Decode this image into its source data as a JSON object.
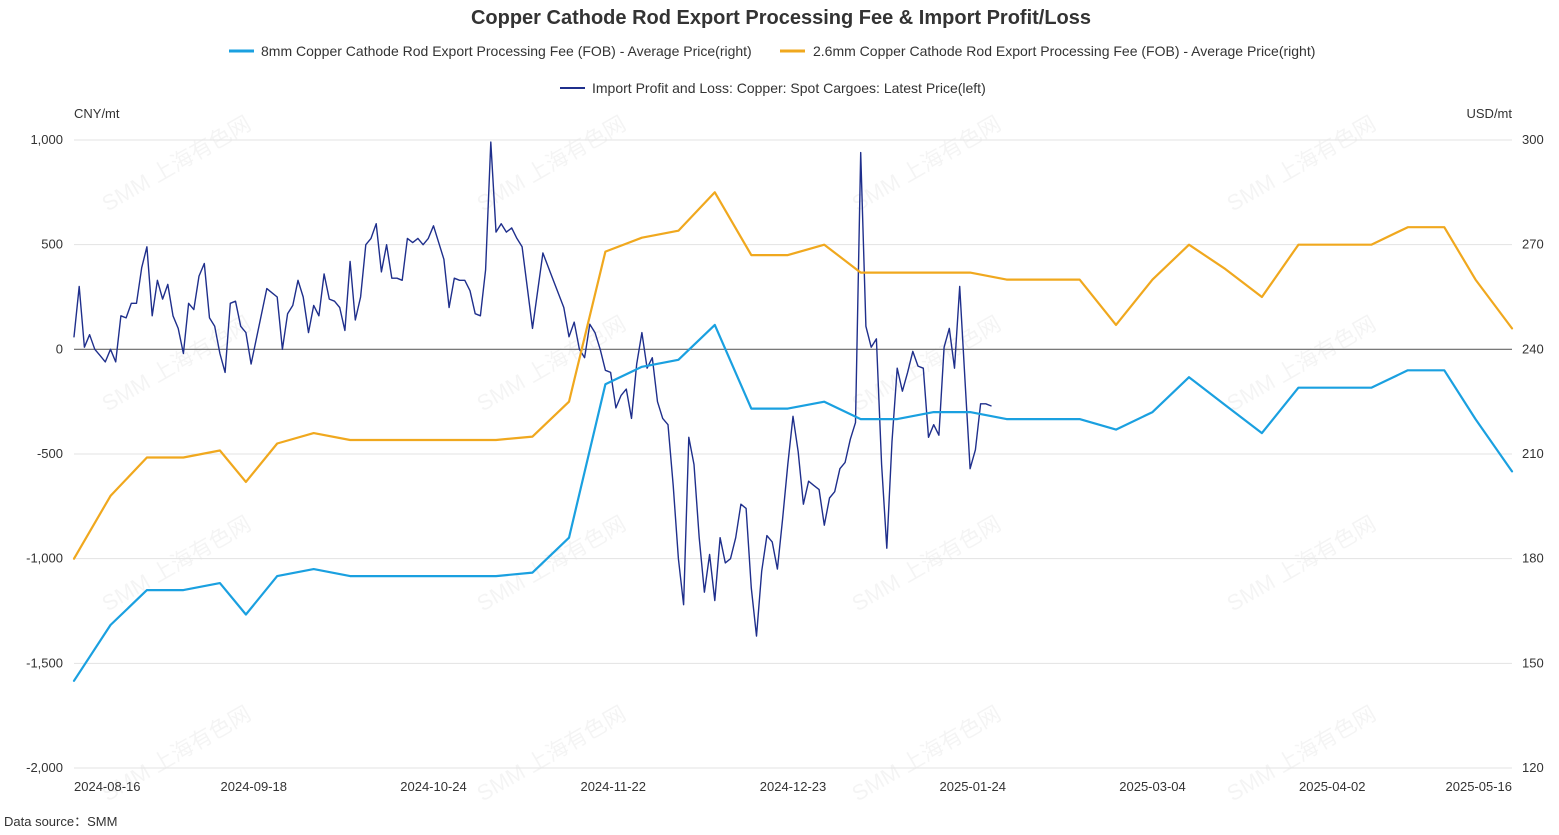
{
  "chart_data": {
    "type": "line",
    "title": "Copper Cathode Rod Export Processing Fee & Import Profit/Loss",
    "left_axis": {
      "unit": "CNY/mt",
      "min": -2000,
      "max": 1000,
      "ticks": [
        "-2,000",
        "-1,500",
        "-1,000",
        "-500",
        "0",
        "500",
        "1,000"
      ],
      "tick_values": [
        -2000,
        -1500,
        -1000,
        -500,
        0,
        500,
        1000
      ]
    },
    "right_axis": {
      "unit": "USD/mt",
      "min": 120,
      "max": 300,
      "ticks": [
        "120",
        "150",
        "180",
        "210",
        "240",
        "270",
        "300"
      ],
      "tick_values": [
        120,
        150,
        180,
        210,
        240,
        270,
        300
      ]
    },
    "x_start": "2024-08-16",
    "x_end": "2025-05-19",
    "x_ticks": [
      "2024-08-16",
      "2024-09-18",
      "2024-10-24",
      "2024-11-22",
      "2024-12-23",
      "2025-01-24",
      "2025-03-04",
      "2025-04-02",
      "2025-05-16"
    ],
    "grid": true,
    "legend_position": "top",
    "watermark": "SMM 上海有色网",
    "source": "Data source：SMM",
    "series": [
      {
        "name": "8mm Copper Cathode Rod Export Processing Fee (FOB) - Average Price(right)",
        "axis": "right",
        "color": "#1aa0e0",
        "width": 2.2,
        "points": [
          [
            "2024-08-16",
            145
          ],
          [
            "2024-08-23",
            161
          ],
          [
            "2024-08-30",
            171
          ],
          [
            "2024-09-06",
            171
          ],
          [
            "2024-09-13",
            173
          ],
          [
            "2024-09-18",
            164
          ],
          [
            "2024-09-24",
            175
          ],
          [
            "2024-10-01",
            177
          ],
          [
            "2024-10-08",
            175
          ],
          [
            "2024-10-15",
            175
          ],
          [
            "2024-10-22",
            175
          ],
          [
            "2024-10-29",
            175
          ],
          [
            "2024-11-05",
            175
          ],
          [
            "2024-11-12",
            176
          ],
          [
            "2024-11-19",
            186
          ],
          [
            "2024-11-26",
            230
          ],
          [
            "2024-12-03",
            235
          ],
          [
            "2024-12-10",
            237
          ],
          [
            "2024-12-17",
            247
          ],
          [
            "2024-12-24",
            223
          ],
          [
            "2024-12-31",
            223
          ],
          [
            "2025-01-07",
            225
          ],
          [
            "2025-01-14",
            220
          ],
          [
            "2025-01-21",
            220
          ],
          [
            "2025-01-28",
            222
          ],
          [
            "2025-02-04",
            222
          ],
          [
            "2025-02-11",
            220
          ],
          [
            "2025-02-18",
            220
          ],
          [
            "2025-02-25",
            220
          ],
          [
            "2025-03-04",
            217
          ],
          [
            "2025-03-11",
            222
          ],
          [
            "2025-03-18",
            232
          ],
          [
            "2025-03-25",
            224
          ],
          [
            "2025-04-01",
            216
          ],
          [
            "2025-04-08",
            229
          ],
          [
            "2025-04-15",
            229
          ],
          [
            "2025-04-22",
            229
          ],
          [
            "2025-04-29",
            234
          ],
          [
            "2025-05-06",
            234
          ],
          [
            "2025-05-12",
            220
          ],
          [
            "2025-05-19",
            205
          ]
        ]
      },
      {
        "name": "2.6mm Copper Cathode Rod Export Processing Fee (FOB) - Average Price(right)",
        "axis": "right",
        "color": "#f0a81e",
        "width": 2.2,
        "points": [
          [
            "2024-08-16",
            180
          ],
          [
            "2024-08-23",
            198
          ],
          [
            "2024-08-30",
            209
          ],
          [
            "2024-09-06",
            209
          ],
          [
            "2024-09-13",
            211
          ],
          [
            "2024-09-18",
            202
          ],
          [
            "2024-09-24",
            213
          ],
          [
            "2024-10-01",
            216
          ],
          [
            "2024-10-08",
            214
          ],
          [
            "2024-10-15",
            214
          ],
          [
            "2024-10-22",
            214
          ],
          [
            "2024-10-29",
            214
          ],
          [
            "2024-11-05",
            214
          ],
          [
            "2024-11-12",
            215
          ],
          [
            "2024-11-19",
            225
          ],
          [
            "2024-11-26",
            268
          ],
          [
            "2024-12-03",
            272
          ],
          [
            "2024-12-10",
            274
          ],
          [
            "2024-12-17",
            285
          ],
          [
            "2024-12-24",
            267
          ],
          [
            "2024-12-31",
            267
          ],
          [
            "2025-01-07",
            270
          ],
          [
            "2025-01-14",
            262
          ],
          [
            "2025-01-21",
            262
          ],
          [
            "2025-01-28",
            262
          ],
          [
            "2025-02-04",
            262
          ],
          [
            "2025-02-11",
            260
          ],
          [
            "2025-02-18",
            260
          ],
          [
            "2025-02-25",
            260
          ],
          [
            "2025-03-04",
            247
          ],
          [
            "2025-03-11",
            260
          ],
          [
            "2025-03-18",
            270
          ],
          [
            "2025-03-25",
            263
          ],
          [
            "2025-04-01",
            255
          ],
          [
            "2025-04-08",
            270
          ],
          [
            "2025-04-15",
            270
          ],
          [
            "2025-04-22",
            270
          ],
          [
            "2025-04-29",
            275
          ],
          [
            "2025-05-06",
            275
          ],
          [
            "2025-05-12",
            260
          ],
          [
            "2025-05-19",
            246
          ]
        ]
      },
      {
        "name": "Import Profit and Loss: Copper: Spot Cargoes: Latest Price(left)",
        "axis": "left",
        "color": "#1f2f8c",
        "width": 1.4,
        "points": [
          [
            "2024-08-16",
            60
          ],
          [
            "2024-08-17",
            300
          ],
          [
            "2024-08-18",
            10
          ],
          [
            "2024-08-19",
            70
          ],
          [
            "2024-08-20",
            0
          ],
          [
            "2024-08-21",
            -30
          ],
          [
            "2024-08-22",
            -60
          ],
          [
            "2024-08-23",
            0
          ],
          [
            "2024-08-24",
            -60
          ],
          [
            "2024-08-25",
            160
          ],
          [
            "2024-08-26",
            150
          ],
          [
            "2024-08-27",
            220
          ],
          [
            "2024-08-28",
            220
          ],
          [
            "2024-08-29",
            390
          ],
          [
            "2024-08-30",
            490
          ],
          [
            "2024-08-31",
            160
          ],
          [
            "2024-09-01",
            330
          ],
          [
            "2024-09-02",
            240
          ],
          [
            "2024-09-03",
            310
          ],
          [
            "2024-09-04",
            160
          ],
          [
            "2024-09-05",
            100
          ],
          [
            "2024-09-06",
            -20
          ],
          [
            "2024-09-07",
            220
          ],
          [
            "2024-09-08",
            190
          ],
          [
            "2024-09-09",
            350
          ],
          [
            "2024-09-10",
            410
          ],
          [
            "2024-09-11",
            150
          ],
          [
            "2024-09-12",
            110
          ],
          [
            "2024-09-13",
            -20
          ],
          [
            "2024-09-14",
            -110
          ],
          [
            "2024-09-15",
            220
          ],
          [
            "2024-09-16",
            230
          ],
          [
            "2024-09-17",
            110
          ],
          [
            "2024-09-18",
            80
          ],
          [
            "2024-09-19",
            -70
          ],
          [
            "2024-09-22",
            290
          ],
          [
            "2024-09-23",
            270
          ],
          [
            "2024-09-24",
            250
          ],
          [
            "2024-09-25",
            0
          ],
          [
            "2024-09-26",
            170
          ],
          [
            "2024-09-27",
            210
          ],
          [
            "2024-09-28",
            330
          ],
          [
            "2024-09-29",
            250
          ],
          [
            "2024-09-30",
            80
          ],
          [
            "2024-10-01",
            210
          ],
          [
            "2024-10-02",
            160
          ],
          [
            "2024-10-03",
            360
          ],
          [
            "2024-10-04",
            240
          ],
          [
            "2024-10-05",
            230
          ],
          [
            "2024-10-06",
            200
          ],
          [
            "2024-10-07",
            90
          ],
          [
            "2024-10-08",
            420
          ],
          [
            "2024-10-09",
            140
          ],
          [
            "2024-10-10",
            250
          ],
          [
            "2024-10-11",
            500
          ],
          [
            "2024-10-12",
            530
          ],
          [
            "2024-10-13",
            600
          ],
          [
            "2024-10-14",
            370
          ],
          [
            "2024-10-15",
            500
          ],
          [
            "2024-10-16",
            340
          ],
          [
            "2024-10-17",
            340
          ],
          [
            "2024-10-18",
            330
          ],
          [
            "2024-10-19",
            530
          ],
          [
            "2024-10-20",
            510
          ],
          [
            "2024-10-21",
            530
          ],
          [
            "2024-10-22",
            500
          ],
          [
            "2024-10-23",
            530
          ],
          [
            "2024-10-24",
            590
          ],
          [
            "2024-10-25",
            510
          ],
          [
            "2024-10-26",
            430
          ],
          [
            "2024-10-27",
            200
          ],
          [
            "2024-10-28",
            340
          ],
          [
            "2024-10-29",
            330
          ],
          [
            "2024-10-30",
            330
          ],
          [
            "2024-10-31",
            280
          ],
          [
            "2024-11-01",
            170
          ],
          [
            "2024-11-02",
            160
          ],
          [
            "2024-11-03",
            380
          ],
          [
            "2024-11-04",
            990
          ],
          [
            "2024-11-05",
            560
          ],
          [
            "2024-11-06",
            600
          ],
          [
            "2024-11-07",
            560
          ],
          [
            "2024-11-08",
            580
          ],
          [
            "2024-11-09",
            530
          ],
          [
            "2024-11-10",
            490
          ],
          [
            "2024-11-12",
            100
          ],
          [
            "2024-11-14",
            460
          ],
          [
            "2024-11-16",
            330
          ],
          [
            "2024-11-18",
            200
          ],
          [
            "2024-11-19",
            60
          ],
          [
            "2024-11-20",
            130
          ],
          [
            "2024-11-21",
            0
          ],
          [
            "2024-11-22",
            -40
          ],
          [
            "2024-11-23",
            120
          ],
          [
            "2024-11-24",
            80
          ],
          [
            "2024-11-25",
            0
          ],
          [
            "2024-11-26",
            -100
          ],
          [
            "2024-11-27",
            -110
          ],
          [
            "2024-11-28",
            -280
          ],
          [
            "2024-11-29",
            -220
          ],
          [
            "2024-11-30",
            -190
          ],
          [
            "2024-12-01",
            -330
          ],
          [
            "2024-12-02",
            -70
          ],
          [
            "2024-12-03",
            80
          ],
          [
            "2024-12-04",
            -90
          ],
          [
            "2024-12-05",
            -40
          ],
          [
            "2024-12-06",
            -250
          ],
          [
            "2024-12-07",
            -330
          ],
          [
            "2024-12-08",
            -360
          ],
          [
            "2024-12-09",
            -650
          ],
          [
            "2024-12-10",
            -1000
          ],
          [
            "2024-12-11",
            -1220
          ],
          [
            "2024-12-12",
            -420
          ],
          [
            "2024-12-13",
            -550
          ],
          [
            "2024-12-14",
            -900
          ],
          [
            "2024-12-15",
            -1160
          ],
          [
            "2024-12-16",
            -980
          ],
          [
            "2024-12-17",
            -1200
          ],
          [
            "2024-12-18",
            -900
          ],
          [
            "2024-12-19",
            -1020
          ],
          [
            "2024-12-20",
            -1000
          ],
          [
            "2024-12-21",
            -900
          ],
          [
            "2024-12-22",
            -740
          ],
          [
            "2024-12-23",
            -760
          ],
          [
            "2024-12-24",
            -1140
          ],
          [
            "2024-12-25",
            -1370
          ],
          [
            "2024-12-26",
            -1060
          ],
          [
            "2024-12-27",
            -890
          ],
          [
            "2024-12-28",
            -920
          ],
          [
            "2024-12-29",
            -1050
          ],
          [
            "2024-12-30",
            -810
          ],
          [
            "2024-12-31",
            -550
          ],
          [
            "2025-01-01",
            -320
          ],
          [
            "2025-01-02",
            -490
          ],
          [
            "2025-01-03",
            -740
          ],
          [
            "2025-01-04",
            -630
          ],
          [
            "2025-01-05",
            -650
          ],
          [
            "2025-01-06",
            -670
          ],
          [
            "2025-01-07",
            -840
          ],
          [
            "2025-01-08",
            -710
          ],
          [
            "2025-01-09",
            -680
          ],
          [
            "2025-01-10",
            -570
          ],
          [
            "2025-01-11",
            -540
          ],
          [
            "2025-01-12",
            -430
          ],
          [
            "2025-01-13",
            -350
          ],
          [
            "2025-01-14",
            940
          ],
          [
            "2025-01-15",
            110
          ],
          [
            "2025-01-16",
            10
          ],
          [
            "2025-01-17",
            50
          ],
          [
            "2025-01-18",
            -550
          ],
          [
            "2025-01-19",
            -950
          ],
          [
            "2025-01-20",
            -440
          ],
          [
            "2025-01-21",
            -90
          ],
          [
            "2025-01-22",
            -200
          ],
          [
            "2025-01-23",
            -110
          ],
          [
            "2025-01-24",
            -10
          ],
          [
            "2025-01-25",
            -80
          ],
          [
            "2025-01-26",
            -90
          ],
          [
            "2025-01-27",
            -420
          ],
          [
            "2025-01-28",
            -360
          ],
          [
            "2025-01-29",
            -410
          ],
          [
            "2025-01-30",
            10
          ],
          [
            "2025-01-31",
            100
          ],
          [
            "2025-02-01",
            -90
          ],
          [
            "2025-02-02",
            300
          ],
          [
            "2025-02-03",
            -140
          ],
          [
            "2025-02-04",
            -570
          ],
          [
            "2025-02-05",
            -480
          ],
          [
            "2025-02-06",
            -260
          ],
          [
            "2025-02-07",
            -260
          ],
          [
            "2025-02-08",
            -270
          ]
        ]
      }
    ]
  }
}
